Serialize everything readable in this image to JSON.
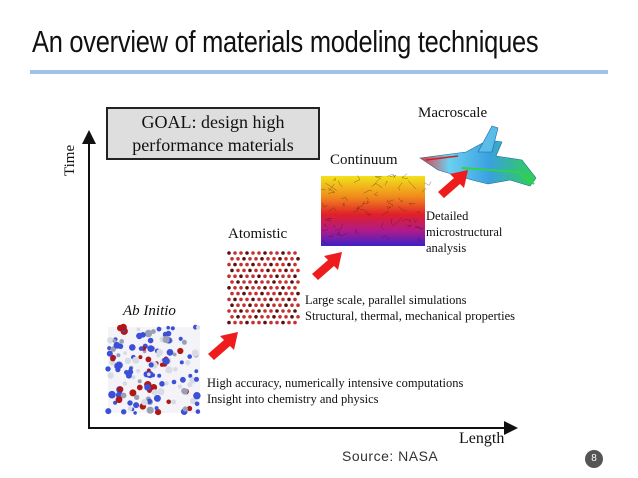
{
  "slide": {
    "title": "An overview of materials modeling techniques",
    "page_number": "8",
    "source": "Source: NASA"
  },
  "axes": {
    "y_label": "Time",
    "x_label": "Length"
  },
  "goal": {
    "line1": "GOAL: design high",
    "line2": "performance materials"
  },
  "levels": [
    {
      "name": "Ab Initio",
      "desc_line1": "High accuracy, numerically intensive computations",
      "desc_line2": "Insight into chemistry and physics"
    },
    {
      "name": "Atomistic",
      "desc_line1": "Large scale, parallel simulations",
      "desc_line2": "Structural, thermal, mechanical properties"
    },
    {
      "name": "Continuum",
      "desc_line1": "Detailed",
      "desc_line2": "microstructural",
      "desc_line3": "analysis"
    },
    {
      "name": "Macroscale"
    }
  ],
  "colors": {
    "arrow": "#ee1c1c",
    "title_rule": "#9fc3e6",
    "goal_fill": "#dedede"
  }
}
